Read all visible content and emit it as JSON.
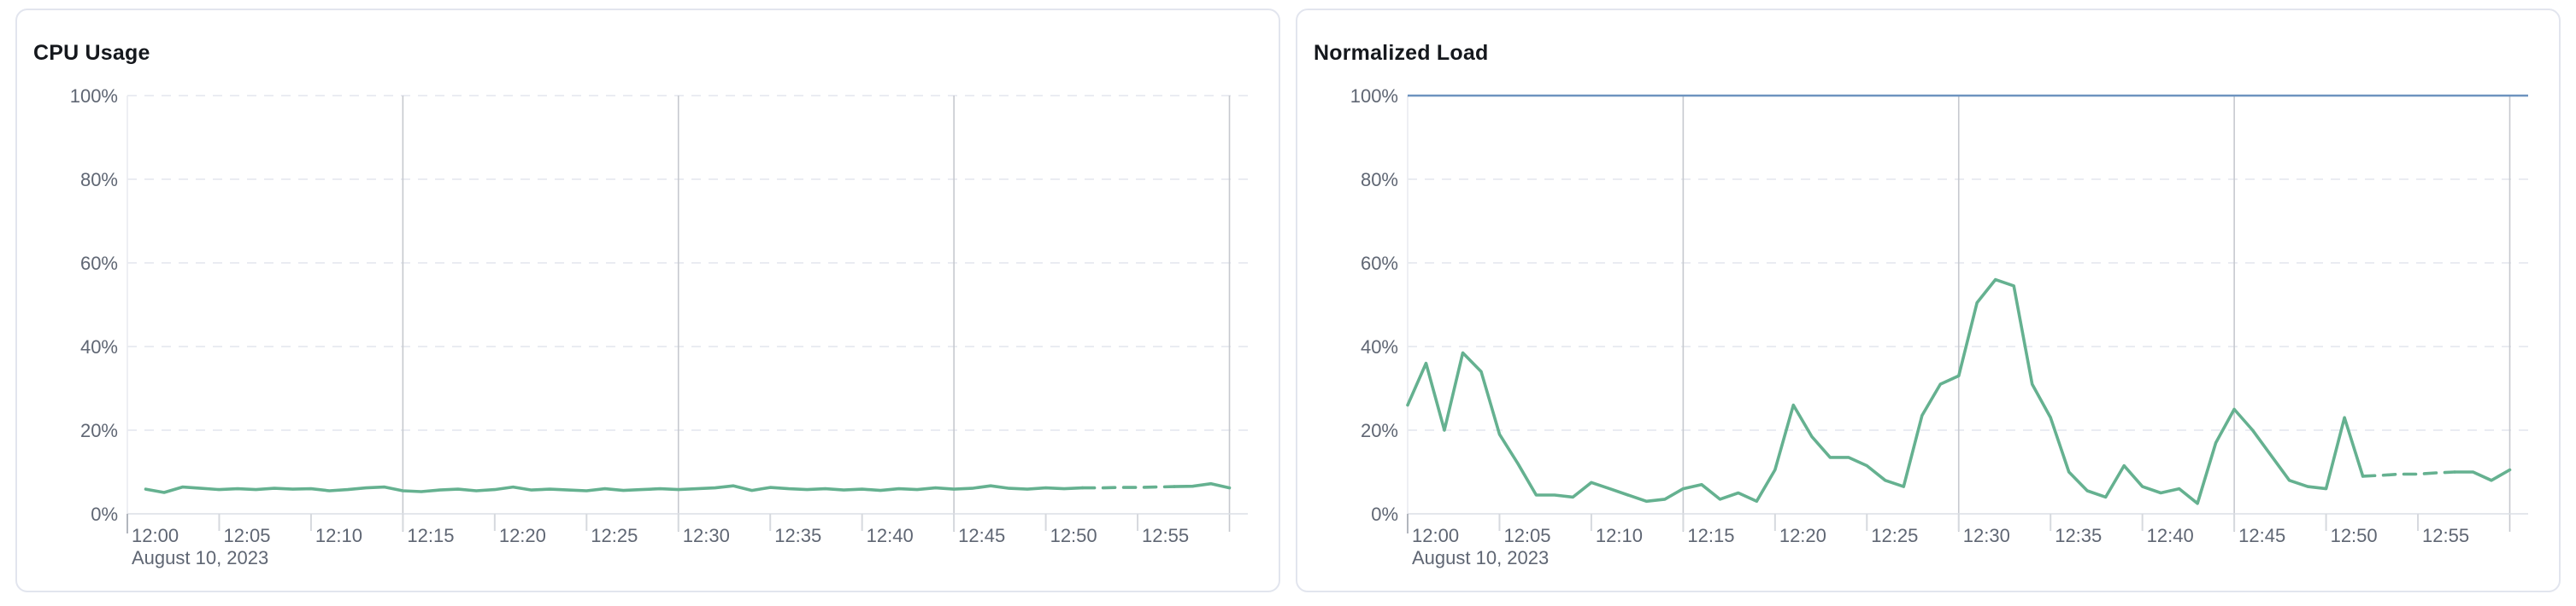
{
  "page": {
    "background_color": "#ffffff",
    "card_border_color": "#e2e5ee",
    "grid_dashed_color": "#e3e6ed",
    "grid_major_color": "#c6c9cf",
    "axis_color": "#dcdfe5",
    "label_color": "#5f6673"
  },
  "chart_data": [
    {
      "id": "cpu-usage",
      "type": "line",
      "title": "CPU Usage",
      "unit": "%",
      "ylim": [
        0,
        100
      ],
      "grid": true,
      "legend": "none",
      "line_color": "#65b190",
      "x_axis_date": "August 10, 2023",
      "x_range_minutes": [
        0,
        61
      ],
      "major_grid_minutes": [
        15,
        30,
        45,
        60
      ],
      "y_ticks": [
        {
          "value": 0,
          "label": "0%"
        },
        {
          "value": 20,
          "label": "20%"
        },
        {
          "value": 40,
          "label": "40%"
        },
        {
          "value": 60,
          "label": "60%"
        },
        {
          "value": 80,
          "label": "80%"
        },
        {
          "value": 100,
          "label": "100%"
        }
      ],
      "x_ticks": [
        {
          "minute": 0,
          "label": "12:00"
        },
        {
          "minute": 5,
          "label": "12:05"
        },
        {
          "minute": 10,
          "label": "12:10"
        },
        {
          "minute": 15,
          "label": "12:15"
        },
        {
          "minute": 20,
          "label": "12:20"
        },
        {
          "minute": 25,
          "label": "12:25"
        },
        {
          "minute": 30,
          "label": "12:30"
        },
        {
          "minute": 35,
          "label": "12:35"
        },
        {
          "minute": 40,
          "label": "12:40"
        },
        {
          "minute": 45,
          "label": "12:45"
        },
        {
          "minute": 50,
          "label": "12:50"
        },
        {
          "minute": 55,
          "label": "12:55"
        }
      ],
      "segments": [
        {
          "style": "solid",
          "points": [
            [
              1,
              5.9
            ],
            [
              2,
              5.1
            ],
            [
              3,
              6.4
            ],
            [
              4,
              6.1
            ],
            [
              5,
              5.8
            ],
            [
              6,
              6.0
            ],
            [
              7,
              5.8
            ],
            [
              8,
              6.1
            ],
            [
              9,
              5.9
            ],
            [
              10,
              6.0
            ],
            [
              11,
              5.5
            ],
            [
              12,
              5.8
            ],
            [
              13,
              6.2
            ],
            [
              14,
              6.4
            ],
            [
              15,
              5.5
            ],
            [
              16,
              5.3
            ],
            [
              17,
              5.7
            ],
            [
              18,
              5.9
            ],
            [
              19,
              5.5
            ],
            [
              20,
              5.8
            ],
            [
              21,
              6.4
            ],
            [
              22,
              5.7
            ],
            [
              23,
              5.9
            ],
            [
              24,
              5.7
            ],
            [
              25,
              5.5
            ],
            [
              26,
              6.0
            ],
            [
              27,
              5.6
            ],
            [
              28,
              5.8
            ],
            [
              29,
              6.0
            ],
            [
              30,
              5.8
            ],
            [
              31,
              6.0
            ],
            [
              32,
              6.2
            ],
            [
              33,
              6.7
            ],
            [
              34,
              5.6
            ],
            [
              35,
              6.3
            ],
            [
              36,
              6.0
            ],
            [
              37,
              5.8
            ],
            [
              38,
              6.0
            ],
            [
              39,
              5.7
            ],
            [
              40,
              5.9
            ],
            [
              41,
              5.6
            ],
            [
              42,
              6.0
            ],
            [
              43,
              5.8
            ],
            [
              44,
              6.2
            ],
            [
              45,
              5.9
            ],
            [
              46,
              6.1
            ],
            [
              47,
              6.7
            ],
            [
              48,
              6.1
            ],
            [
              49,
              5.9
            ],
            [
              50,
              6.2
            ],
            [
              51,
              6.0
            ],
            [
              52,
              6.2
            ]
          ]
        },
        {
          "style": "dashed",
          "points": [
            [
              52,
              6.2
            ],
            [
              53,
              6.2
            ],
            [
              54,
              6.3
            ],
            [
              55,
              6.3
            ],
            [
              56,
              6.4
            ],
            [
              57,
              6.5
            ]
          ]
        },
        {
          "style": "solid",
          "points": [
            [
              57,
              6.5
            ],
            [
              58,
              6.6
            ],
            [
              59,
              7.2
            ],
            [
              60,
              6.2
            ]
          ]
        }
      ]
    },
    {
      "id": "normalized-load",
      "type": "line",
      "title": "Normalized Load",
      "unit": "%",
      "ylim": [
        0,
        100
      ],
      "grid": true,
      "legend": "none",
      "line_color": "#65b190",
      "threshold_line": {
        "value": 100,
        "color": "#6d93bf"
      },
      "x_axis_date": "August 10, 2023",
      "x_range_minutes": [
        0,
        61
      ],
      "major_grid_minutes": [
        15,
        30,
        45,
        60
      ],
      "y_ticks": [
        {
          "value": 0,
          "label": "0%"
        },
        {
          "value": 20,
          "label": "20%"
        },
        {
          "value": 40,
          "label": "40%"
        },
        {
          "value": 60,
          "label": "60%"
        },
        {
          "value": 80,
          "label": "80%"
        },
        {
          "value": 100,
          "label": "100%"
        }
      ],
      "x_ticks": [
        {
          "minute": 0,
          "label": "12:00"
        },
        {
          "minute": 5,
          "label": "12:05"
        },
        {
          "minute": 10,
          "label": "12:10"
        },
        {
          "minute": 15,
          "label": "12:15"
        },
        {
          "minute": 20,
          "label": "12:20"
        },
        {
          "minute": 25,
          "label": "12:25"
        },
        {
          "minute": 30,
          "label": "12:30"
        },
        {
          "minute": 35,
          "label": "12:35"
        },
        {
          "minute": 40,
          "label": "12:40"
        },
        {
          "minute": 45,
          "label": "12:45"
        },
        {
          "minute": 50,
          "label": "12:50"
        },
        {
          "minute": 55,
          "label": "12:55"
        }
      ],
      "segments": [
        {
          "style": "solid",
          "points": [
            [
              0,
              26
            ],
            [
              1,
              36
            ],
            [
              2,
              20
            ],
            [
              3,
              38.5
            ],
            [
              4,
              34
            ],
            [
              5,
              19
            ],
            [
              6,
              12
            ],
            [
              7,
              4.5
            ],
            [
              8,
              4.5
            ],
            [
              9,
              4
            ],
            [
              10,
              7.5
            ],
            [
              11,
              6
            ],
            [
              12,
              4.5
            ],
            [
              13,
              3
            ],
            [
              14,
              3.5
            ],
            [
              15,
              6
            ],
            [
              16,
              7
            ],
            [
              17,
              3.5
            ],
            [
              18,
              5
            ],
            [
              19,
              3
            ],
            [
              20,
              10.5
            ],
            [
              21,
              26
            ],
            [
              22,
              18.5
            ],
            [
              23,
              13.5
            ],
            [
              24,
              13.5
            ],
            [
              25,
              11.5
            ],
            [
              26,
              8
            ],
            [
              27,
              6.5
            ],
            [
              28,
              23.5
            ],
            [
              29,
              31
            ],
            [
              30,
              33
            ],
            [
              31,
              50.5
            ],
            [
              32,
              56
            ],
            [
              33,
              54.5
            ],
            [
              34,
              31
            ],
            [
              35,
              23
            ],
            [
              36,
              10
            ],
            [
              37,
              5.5
            ],
            [
              38,
              4
            ],
            [
              39,
              11.5
            ],
            [
              40,
              6.5
            ],
            [
              41,
              5
            ],
            [
              42,
              6
            ],
            [
              43,
              2.5
            ],
            [
              44,
              17
            ],
            [
              45,
              25
            ],
            [
              46,
              20
            ],
            [
              47,
              14
            ],
            [
              48,
              8
            ],
            [
              49,
              6.5
            ],
            [
              50,
              6
            ],
            [
              51,
              23
            ],
            [
              52,
              9
            ]
          ]
        },
        {
          "style": "dashed",
          "points": [
            [
              52,
              9
            ],
            [
              53,
              9.2
            ],
            [
              54,
              9.5
            ],
            [
              55,
              9.5
            ],
            [
              56,
              9.8
            ],
            [
              57,
              10
            ]
          ]
        },
        {
          "style": "solid",
          "points": [
            [
              57,
              10
            ],
            [
              58,
              10
            ],
            [
              59,
              8
            ],
            [
              60,
              10.5
            ]
          ]
        }
      ]
    }
  ]
}
